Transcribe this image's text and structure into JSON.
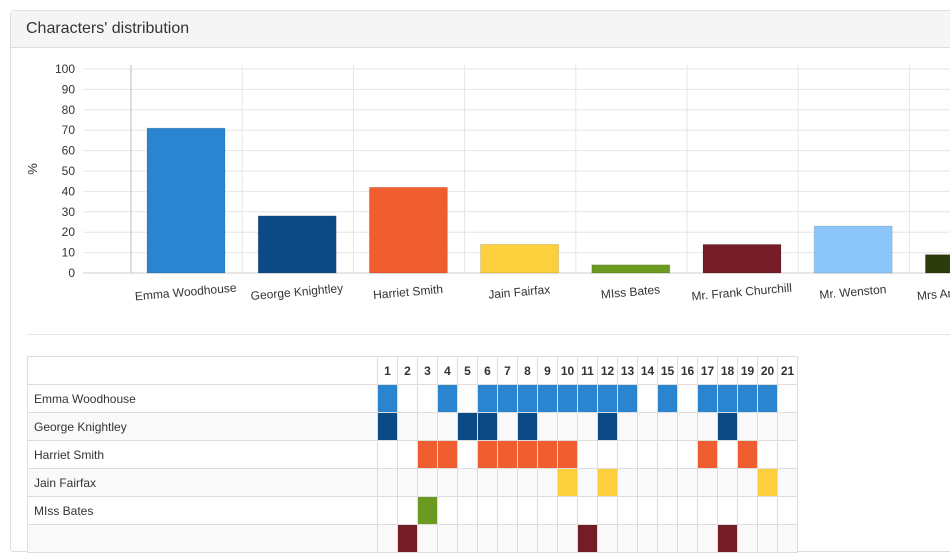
{
  "panel": {
    "title": "Characters' distribution"
  },
  "chart_data": {
    "type": "bar",
    "categories": [
      "Emma Woodhouse",
      "George Knightley",
      "Harriet Smith",
      "Jain Fairfax",
      "MIss Bates",
      "Mr. Frank Churchill",
      "Mr. Wenston",
      "Mrs Anne Weston"
    ],
    "values": [
      71,
      28,
      42,
      14,
      4,
      14,
      23,
      9
    ],
    "colors": [
      "#2b84cf",
      "#0c4a86",
      "#f05d30",
      "#fbd03c",
      "#6b9a21",
      "#741d27",
      "#8dc6f9",
      "#2c3d0b"
    ],
    "ylabel": "%",
    "ylim": [
      0,
      100
    ],
    "yticks": [
      0,
      10,
      20,
      30,
      40,
      50,
      60,
      70,
      80,
      90,
      100
    ],
    "grid": true
  },
  "table": {
    "columns": [
      "1",
      "2",
      "3",
      "4",
      "5",
      "6",
      "7",
      "8",
      "9",
      "10",
      "11",
      "12",
      "13",
      "14",
      "15",
      "16",
      "17",
      "18",
      "19",
      "20",
      "21"
    ],
    "rows": [
      {
        "name": "Emma Woodhouse",
        "color": "#2b84cf",
        "chapters": [
          1,
          4,
          6,
          7,
          8,
          9,
          10,
          11,
          12,
          13,
          15,
          17,
          18,
          19,
          20
        ]
      },
      {
        "name": "George Knightley",
        "color": "#0c4a86",
        "chapters": [
          1,
          5,
          6,
          8,
          12,
          18
        ]
      },
      {
        "name": "Harriet Smith",
        "color": "#f05d30",
        "chapters": [
          3,
          4,
          6,
          7,
          8,
          9,
          10,
          17,
          19
        ]
      },
      {
        "name": "Jain Fairfax",
        "color": "#fbd03c",
        "chapters": [
          10,
          12,
          20
        ]
      },
      {
        "name": "MIss Bates",
        "color": "#6b9a21",
        "chapters": [
          3
        ]
      },
      {
        "name": "",
        "color": "#741d27",
        "chapters": [
          2,
          11,
          18
        ]
      }
    ]
  }
}
